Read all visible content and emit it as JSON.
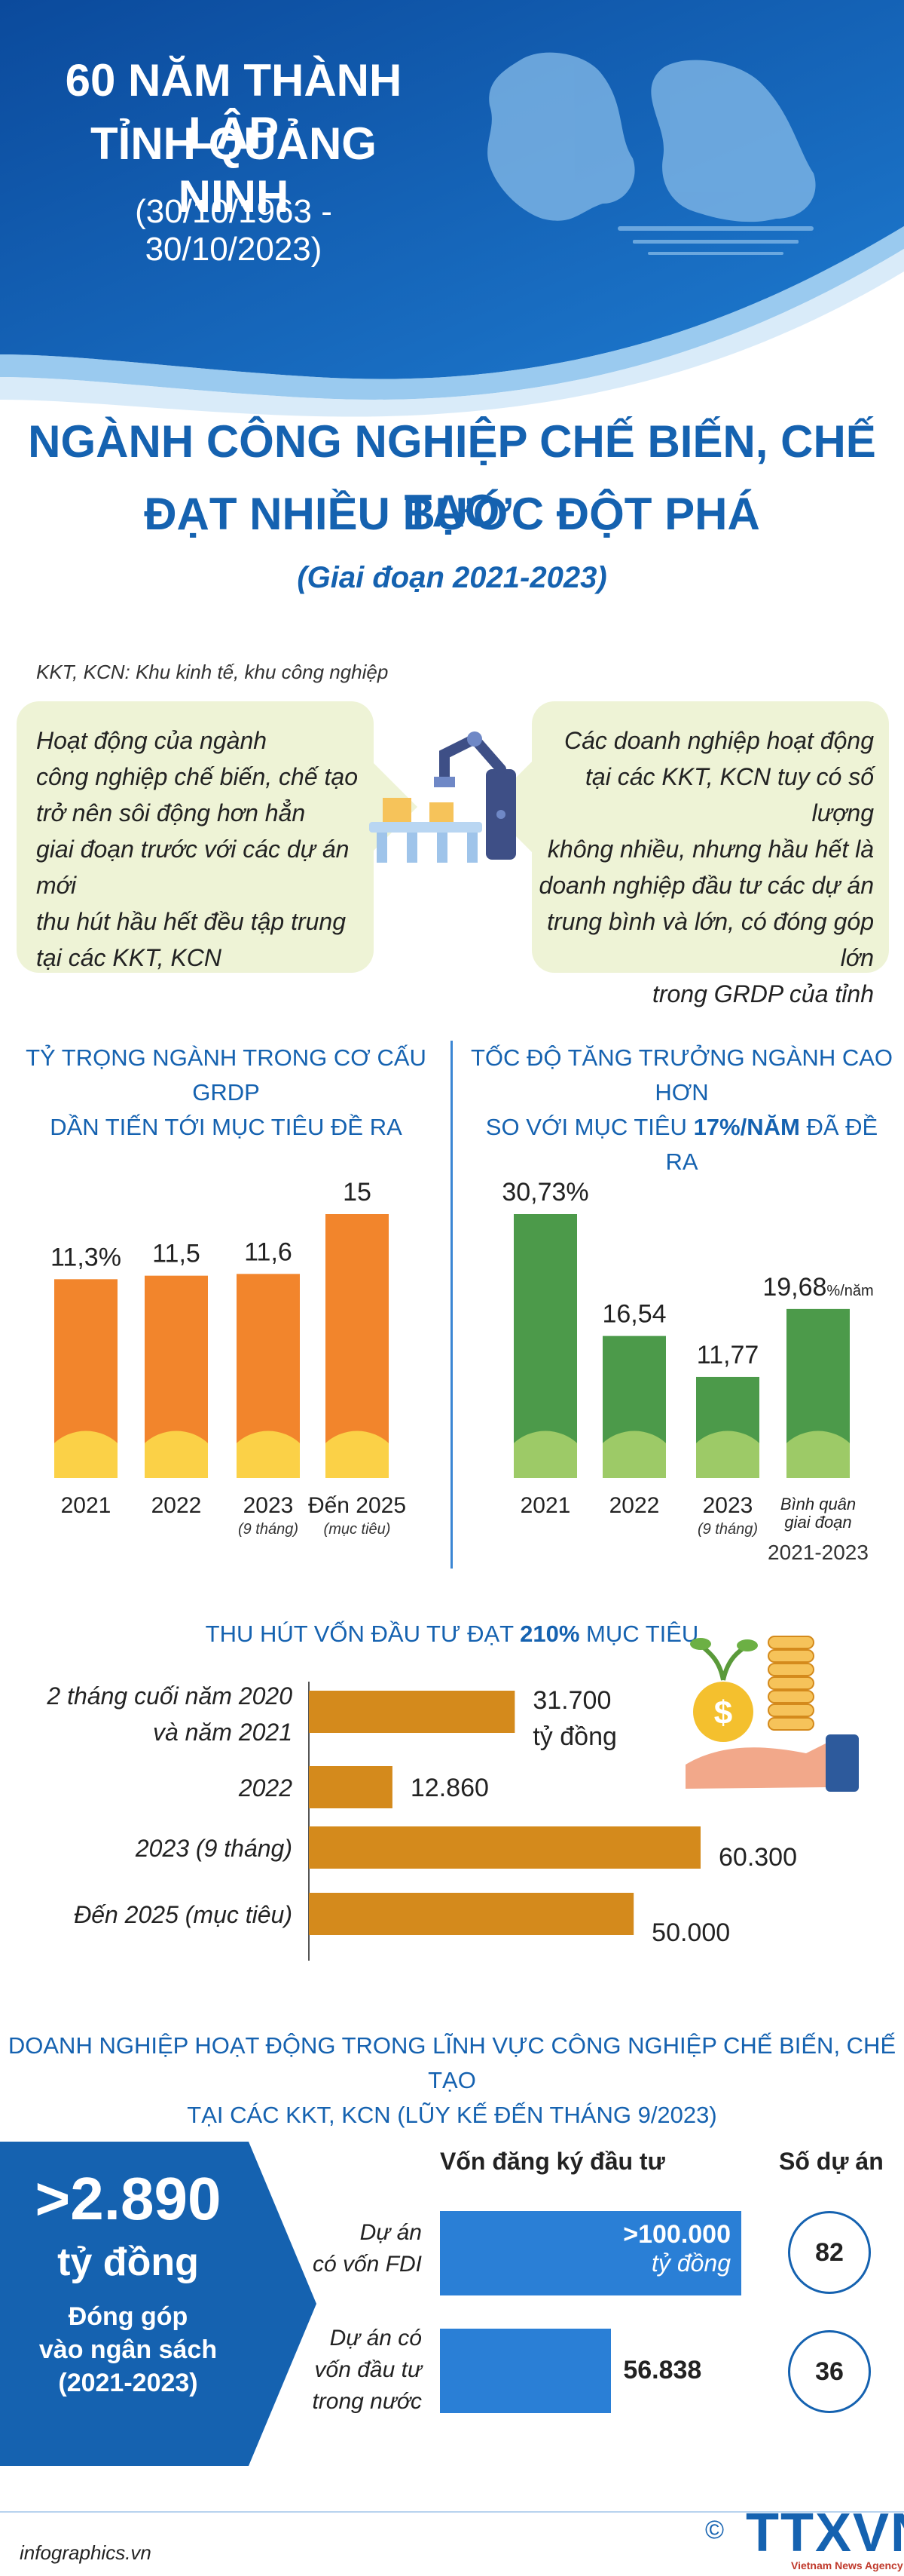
{
  "header": {
    "line1": "60 NĂM THÀNH LẬP",
    "line2": "TỈNH QUẢNG NINH",
    "dates": "(30/10/1963 - 30/10/2023)"
  },
  "title": {
    "line1": "NGÀNH CÔNG NGHIỆP CHẾ BIẾN, CHẾ TẠO",
    "line2": "ĐẠT NHIỀU BƯỚC ĐỘT PHÁ",
    "subtitle": "(Giai đoạn 2021-2023)"
  },
  "note": "KKT, KCN: Khu kinh tế, khu công nghiệp",
  "boxes": {
    "left": [
      "Hoạt động của ngành",
      "công nghiệp chế biến, chế tạo",
      "trở nên sôi động hơn hẳn",
      "giai đoạn trước với các dự án mới",
      "thu hút hầu hết đều tập trung",
      "tại các KKT, KCN"
    ],
    "right": [
      "Các doanh nghiệp hoạt động",
      "tại các KKT, KCN tuy có số lượng",
      "không nhiều, nhưng hầu hết là",
      "doanh nghiệp đầu tư các dự án",
      "trung bình và lớn, có đóng góp lớn",
      "trong GRDP của tỉnh"
    ]
  },
  "colors": {
    "blue": "#1562b0",
    "orange": "#f2852c",
    "yellow": "#fcd94a",
    "darkgreen": "#4c9a4a",
    "lightgreen": "#a6cf6a",
    "gold": "#d48a1c",
    "box": "#eef3d6"
  },
  "chart_data": [
    {
      "type": "bar",
      "title": "TỶ TRỌNG NGÀNH TRONG CƠ CẤU GRDP DẦN TIẾN TỚI MỤC TIÊU ĐỀ RA",
      "title_lines": [
        "TỶ TRỌNG NGÀNH TRONG CƠ CẤU GRDP",
        "DẦN TIẾN TỚI MỤC TIÊU ĐỀ RA"
      ],
      "categories": [
        "2021",
        "2022",
        "2023",
        "Đến 2025"
      ],
      "category_notes": [
        "",
        "",
        "(9 tháng)",
        "(mục tiêu)"
      ],
      "values": [
        11.3,
        11.5,
        11.6,
        15
      ],
      "value_labels": [
        "11,3%",
        "11,5",
        "11,6",
        "15"
      ],
      "ylim": [
        0,
        15
      ]
    },
    {
      "type": "bar",
      "title": "TỐC ĐỘ TĂNG TRƯỞNG NGÀNH CAO HƠN SO VỚI MỤC TIÊU 17%/NĂM ĐÃ ĐỀ RA",
      "title_lines": [
        "TỐC ĐỘ TĂNG TRƯỞNG NGÀNH CAO HƠN",
        "SO VỚI MỤC TIÊU "
      ],
      "title_highlight": "17%/NĂM",
      "title_tail": " ĐÃ ĐỀ RA",
      "categories": [
        "2021",
        "2022",
        "2023",
        "Bình quân giai đoạn"
      ],
      "category_notes": [
        "",
        "",
        "(9 tháng)",
        "2021-2023"
      ],
      "values": [
        30.73,
        16.54,
        11.77,
        19.68
      ],
      "value_labels": [
        "30,73%",
        "16,54",
        "11,77",
        "19,68"
      ],
      "value_suffix_last": "%/năm",
      "ylim": [
        0,
        30.73
      ]
    },
    {
      "type": "bar",
      "orientation": "horizontal",
      "title_pre": "THU HÚT VỐN ĐẦU TƯ ĐẠT ",
      "title_highlight": "210%",
      "title_post": " MỤC TIÊU",
      "categories": [
        "2 tháng cuối năm 2020 và năm 2021",
        "2022",
        "2023 (9 tháng)",
        "Đến 2025 (mục tiêu)"
      ],
      "category_lines": [
        [
          "2 tháng cuối năm 2020",
          "và năm 2021"
        ],
        [
          "2022"
        ],
        [
          "2023 (9 tháng)"
        ],
        [
          "Đến 2025 (mục tiêu)"
        ]
      ],
      "values": [
        31700,
        12860,
        60300,
        50000
      ],
      "value_labels": [
        "31.700",
        "12.860",
        "60.300",
        "50.000"
      ],
      "unit_first": "tỷ đồng",
      "xlim": [
        0,
        60300
      ]
    }
  ],
  "enterprise": {
    "title_line1": "DOANH NGHIỆP HOẠT ĐỘNG TRONG LĨNH VỰC CÔNG NGHIỆP CHẾ BIẾN, CHẾ TẠO",
    "title_line2": "TẠI CÁC KKT, KCN (LŨY KẾ ĐẾN THÁNG 9/2023)",
    "contribution_value": ">2.890",
    "contribution_unit": "tỷ đồng",
    "contribution_desc": [
      "Đóng góp",
      "vào ngân sách",
      "(2021-2023)"
    ],
    "col_capital": "Vốn đăng ký đầu tư",
    "col_projects": "Số dự án",
    "rows": [
      {
        "label_lines": [
          "Dự án",
          "có vốn FDI"
        ],
        "value": ">100.000",
        "unit": "tỷ đồng",
        "projects": "82",
        "capital": 100000
      },
      {
        "label_lines": [
          "Dự án có",
          "vốn đầu tư",
          "trong nước"
        ],
        "value": "56.838",
        "unit": "",
        "projects": "36",
        "capital": 56838
      }
    ]
  },
  "footer": {
    "source": "infographics.vn",
    "copyright": "©",
    "logo": "TTXVN",
    "logo_sub": "Vietnam News Agency"
  }
}
